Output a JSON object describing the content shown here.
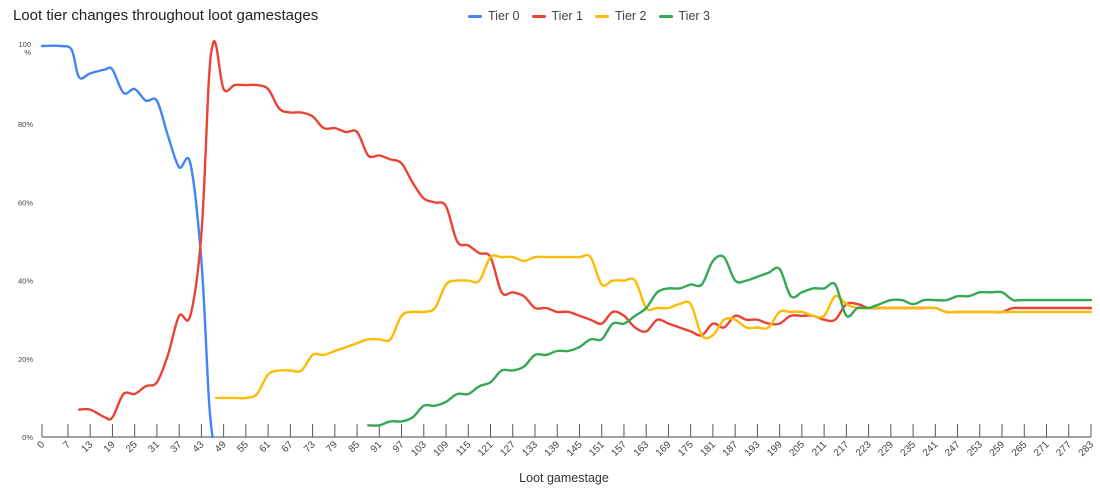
{
  "chart_data": {
    "type": "line",
    "title": "Loot tier changes throughout loot gamestages",
    "xlabel": "Loot gamestage",
    "ylabel": "",
    "legend_position": "top",
    "grid": false,
    "ylim": [
      0,
      100
    ],
    "xlim": [
      0,
      283
    ],
    "y_ticks": [
      "0%",
      "20%",
      "40%",
      "60%",
      "80%",
      "100%"
    ],
    "x_ticks": [
      0,
      7,
      13,
      19,
      25,
      31,
      37,
      43,
      49,
      55,
      61,
      67,
      73,
      79,
      85,
      91,
      97,
      103,
      109,
      115,
      121,
      127,
      133,
      139,
      145,
      151,
      157,
      163,
      169,
      175,
      181,
      187,
      193,
      199,
      205,
      211,
      217,
      223,
      229,
      235,
      241,
      247,
      253,
      259,
      265,
      271,
      277,
      283
    ],
    "series": [
      {
        "name": "Tier 0",
        "color": "#4285f4",
        "points": [
          [
            0,
            100
          ],
          [
            5,
            100
          ],
          [
            8,
            99
          ],
          [
            10,
            92
          ],
          [
            13,
            93
          ],
          [
            17,
            94
          ],
          [
            19,
            94
          ],
          [
            22,
            88
          ],
          [
            25,
            89
          ],
          [
            28,
            86
          ],
          [
            31,
            86
          ],
          [
            34,
            77
          ],
          [
            37,
            69
          ],
          [
            40,
            70
          ],
          [
            43,
            45
          ],
          [
            45,
            10
          ],
          [
            46,
            0
          ]
        ]
      },
      {
        "name": "Tier 1",
        "color": "#ea4335",
        "points": [
          [
            10,
            7
          ],
          [
            13,
            7
          ],
          [
            17,
            5
          ],
          [
            19,
            5
          ],
          [
            22,
            11
          ],
          [
            25,
            11
          ],
          [
            28,
            13
          ],
          [
            31,
            14
          ],
          [
            34,
            21
          ],
          [
            37,
            31
          ],
          [
            40,
            31
          ],
          [
            43,
            52
          ],
          [
            45,
            91
          ],
          [
            46,
            100
          ],
          [
            47,
            100
          ],
          [
            49,
            89
          ],
          [
            52,
            90
          ],
          [
            55,
            90
          ],
          [
            58,
            90
          ],
          [
            61,
            89
          ],
          [
            64,
            84
          ],
          [
            67,
            83
          ],
          [
            70,
            83
          ],
          [
            73,
            82
          ],
          [
            76,
            79
          ],
          [
            79,
            79
          ],
          [
            82,
            78
          ],
          [
            85,
            78
          ],
          [
            88,
            72
          ],
          [
            91,
            72
          ],
          [
            94,
            71
          ],
          [
            97,
            70
          ],
          [
            100,
            65
          ],
          [
            103,
            61
          ],
          [
            106,
            60
          ],
          [
            109,
            59
          ],
          [
            112,
            50
          ],
          [
            115,
            49
          ],
          [
            118,
            47
          ],
          [
            121,
            46
          ],
          [
            124,
            37
          ],
          [
            127,
            37
          ],
          [
            130,
            36
          ],
          [
            133,
            33
          ],
          [
            136,
            33
          ],
          [
            139,
            32
          ],
          [
            142,
            32
          ],
          [
            145,
            31
          ],
          [
            148,
            30
          ],
          [
            151,
            29
          ],
          [
            154,
            32
          ],
          [
            157,
            31
          ],
          [
            160,
            28
          ],
          [
            163,
            27
          ],
          [
            166,
            30
          ],
          [
            169,
            29
          ],
          [
            172,
            28
          ],
          [
            175,
            27
          ],
          [
            178,
            26
          ],
          [
            181,
            29
          ],
          [
            184,
            28
          ],
          [
            187,
            31
          ],
          [
            190,
            30
          ],
          [
            193,
            30
          ],
          [
            196,
            29
          ],
          [
            199,
            29
          ],
          [
            202,
            31
          ],
          [
            205,
            31
          ],
          [
            208,
            31
          ],
          [
            211,
            30
          ],
          [
            214,
            30
          ],
          [
            217,
            34
          ],
          [
            220,
            34
          ],
          [
            223,
            33
          ],
          [
            226,
            33
          ],
          [
            229,
            33
          ],
          [
            232,
            33
          ],
          [
            235,
            33
          ],
          [
            238,
            33
          ],
          [
            241,
            33
          ],
          [
            244,
            32
          ],
          [
            247,
            32
          ],
          [
            250,
            32
          ],
          [
            253,
            32
          ],
          [
            256,
            32
          ],
          [
            259,
            32
          ],
          [
            262,
            33
          ],
          [
            265,
            33
          ],
          [
            283,
            33
          ]
        ]
      },
      {
        "name": "Tier 2",
        "color": "#fbbc04",
        "points": [
          [
            47,
            10
          ],
          [
            49,
            10
          ],
          [
            52,
            10
          ],
          [
            55,
            10
          ],
          [
            58,
            11
          ],
          [
            61,
            16
          ],
          [
            64,
            17
          ],
          [
            67,
            17
          ],
          [
            70,
            17
          ],
          [
            73,
            21
          ],
          [
            76,
            21
          ],
          [
            79,
            22
          ],
          [
            82,
            23
          ],
          [
            85,
            24
          ],
          [
            88,
            25
          ],
          [
            91,
            25
          ],
          [
            94,
            25
          ],
          [
            97,
            31
          ],
          [
            100,
            32
          ],
          [
            103,
            32
          ],
          [
            106,
            33
          ],
          [
            109,
            39
          ],
          [
            112,
            40
          ],
          [
            115,
            40
          ],
          [
            118,
            40
          ],
          [
            121,
            46
          ],
          [
            124,
            46
          ],
          [
            127,
            46
          ],
          [
            130,
            45
          ],
          [
            133,
            46
          ],
          [
            136,
            46
          ],
          [
            139,
            46
          ],
          [
            142,
            46
          ],
          [
            145,
            46
          ],
          [
            148,
            46
          ],
          [
            151,
            39
          ],
          [
            154,
            40
          ],
          [
            157,
            40
          ],
          [
            160,
            40
          ],
          [
            163,
            33
          ],
          [
            166,
            33
          ],
          [
            169,
            33
          ],
          [
            172,
            34
          ],
          [
            175,
            34
          ],
          [
            178,
            26
          ],
          [
            181,
            26
          ],
          [
            184,
            30
          ],
          [
            187,
            30
          ],
          [
            190,
            28
          ],
          [
            193,
            28
          ],
          [
            196,
            28
          ],
          [
            199,
            32
          ],
          [
            202,
            32
          ],
          [
            205,
            32
          ],
          [
            208,
            31
          ],
          [
            211,
            31
          ],
          [
            214,
            36
          ],
          [
            217,
            34
          ],
          [
            220,
            33
          ],
          [
            223,
            33
          ],
          [
            226,
            33
          ],
          [
            229,
            33
          ],
          [
            232,
            33
          ],
          [
            235,
            33
          ],
          [
            238,
            33
          ],
          [
            241,
            33
          ],
          [
            244,
            32
          ],
          [
            247,
            32
          ],
          [
            250,
            32
          ],
          [
            253,
            32
          ],
          [
            256,
            32
          ],
          [
            259,
            32
          ],
          [
            262,
            32
          ],
          [
            265,
            32
          ],
          [
            283,
            32
          ]
        ]
      },
      {
        "name": "Tier 3",
        "color": "#34a853",
        "points": [
          [
            88,
            3
          ],
          [
            91,
            3
          ],
          [
            94,
            4
          ],
          [
            97,
            4
          ],
          [
            100,
            5
          ],
          [
            103,
            8
          ],
          [
            106,
            8
          ],
          [
            109,
            9
          ],
          [
            112,
            11
          ],
          [
            115,
            11
          ],
          [
            118,
            13
          ],
          [
            121,
            14
          ],
          [
            124,
            17
          ],
          [
            127,
            17
          ],
          [
            130,
            18
          ],
          [
            133,
            21
          ],
          [
            136,
            21
          ],
          [
            139,
            22
          ],
          [
            142,
            22
          ],
          [
            145,
            23
          ],
          [
            148,
            25
          ],
          [
            151,
            25
          ],
          [
            154,
            29
          ],
          [
            157,
            29
          ],
          [
            160,
            31
          ],
          [
            163,
            33
          ],
          [
            166,
            37
          ],
          [
            169,
            38
          ],
          [
            172,
            38
          ],
          [
            175,
            39
          ],
          [
            178,
            39
          ],
          [
            181,
            45
          ],
          [
            184,
            46
          ],
          [
            187,
            40
          ],
          [
            190,
            40
          ],
          [
            193,
            41
          ],
          [
            196,
            42
          ],
          [
            199,
            43
          ],
          [
            202,
            36
          ],
          [
            205,
            37
          ],
          [
            208,
            38
          ],
          [
            211,
            38
          ],
          [
            214,
            39
          ],
          [
            217,
            31
          ],
          [
            220,
            33
          ],
          [
            223,
            33
          ],
          [
            226,
            34
          ],
          [
            229,
            35
          ],
          [
            232,
            35
          ],
          [
            235,
            34
          ],
          [
            238,
            35
          ],
          [
            241,
            35
          ],
          [
            244,
            35
          ],
          [
            247,
            36
          ],
          [
            250,
            36
          ],
          [
            253,
            37
          ],
          [
            256,
            37
          ],
          [
            259,
            37
          ],
          [
            262,
            35
          ],
          [
            265,
            35
          ],
          [
            283,
            35
          ]
        ]
      }
    ]
  }
}
